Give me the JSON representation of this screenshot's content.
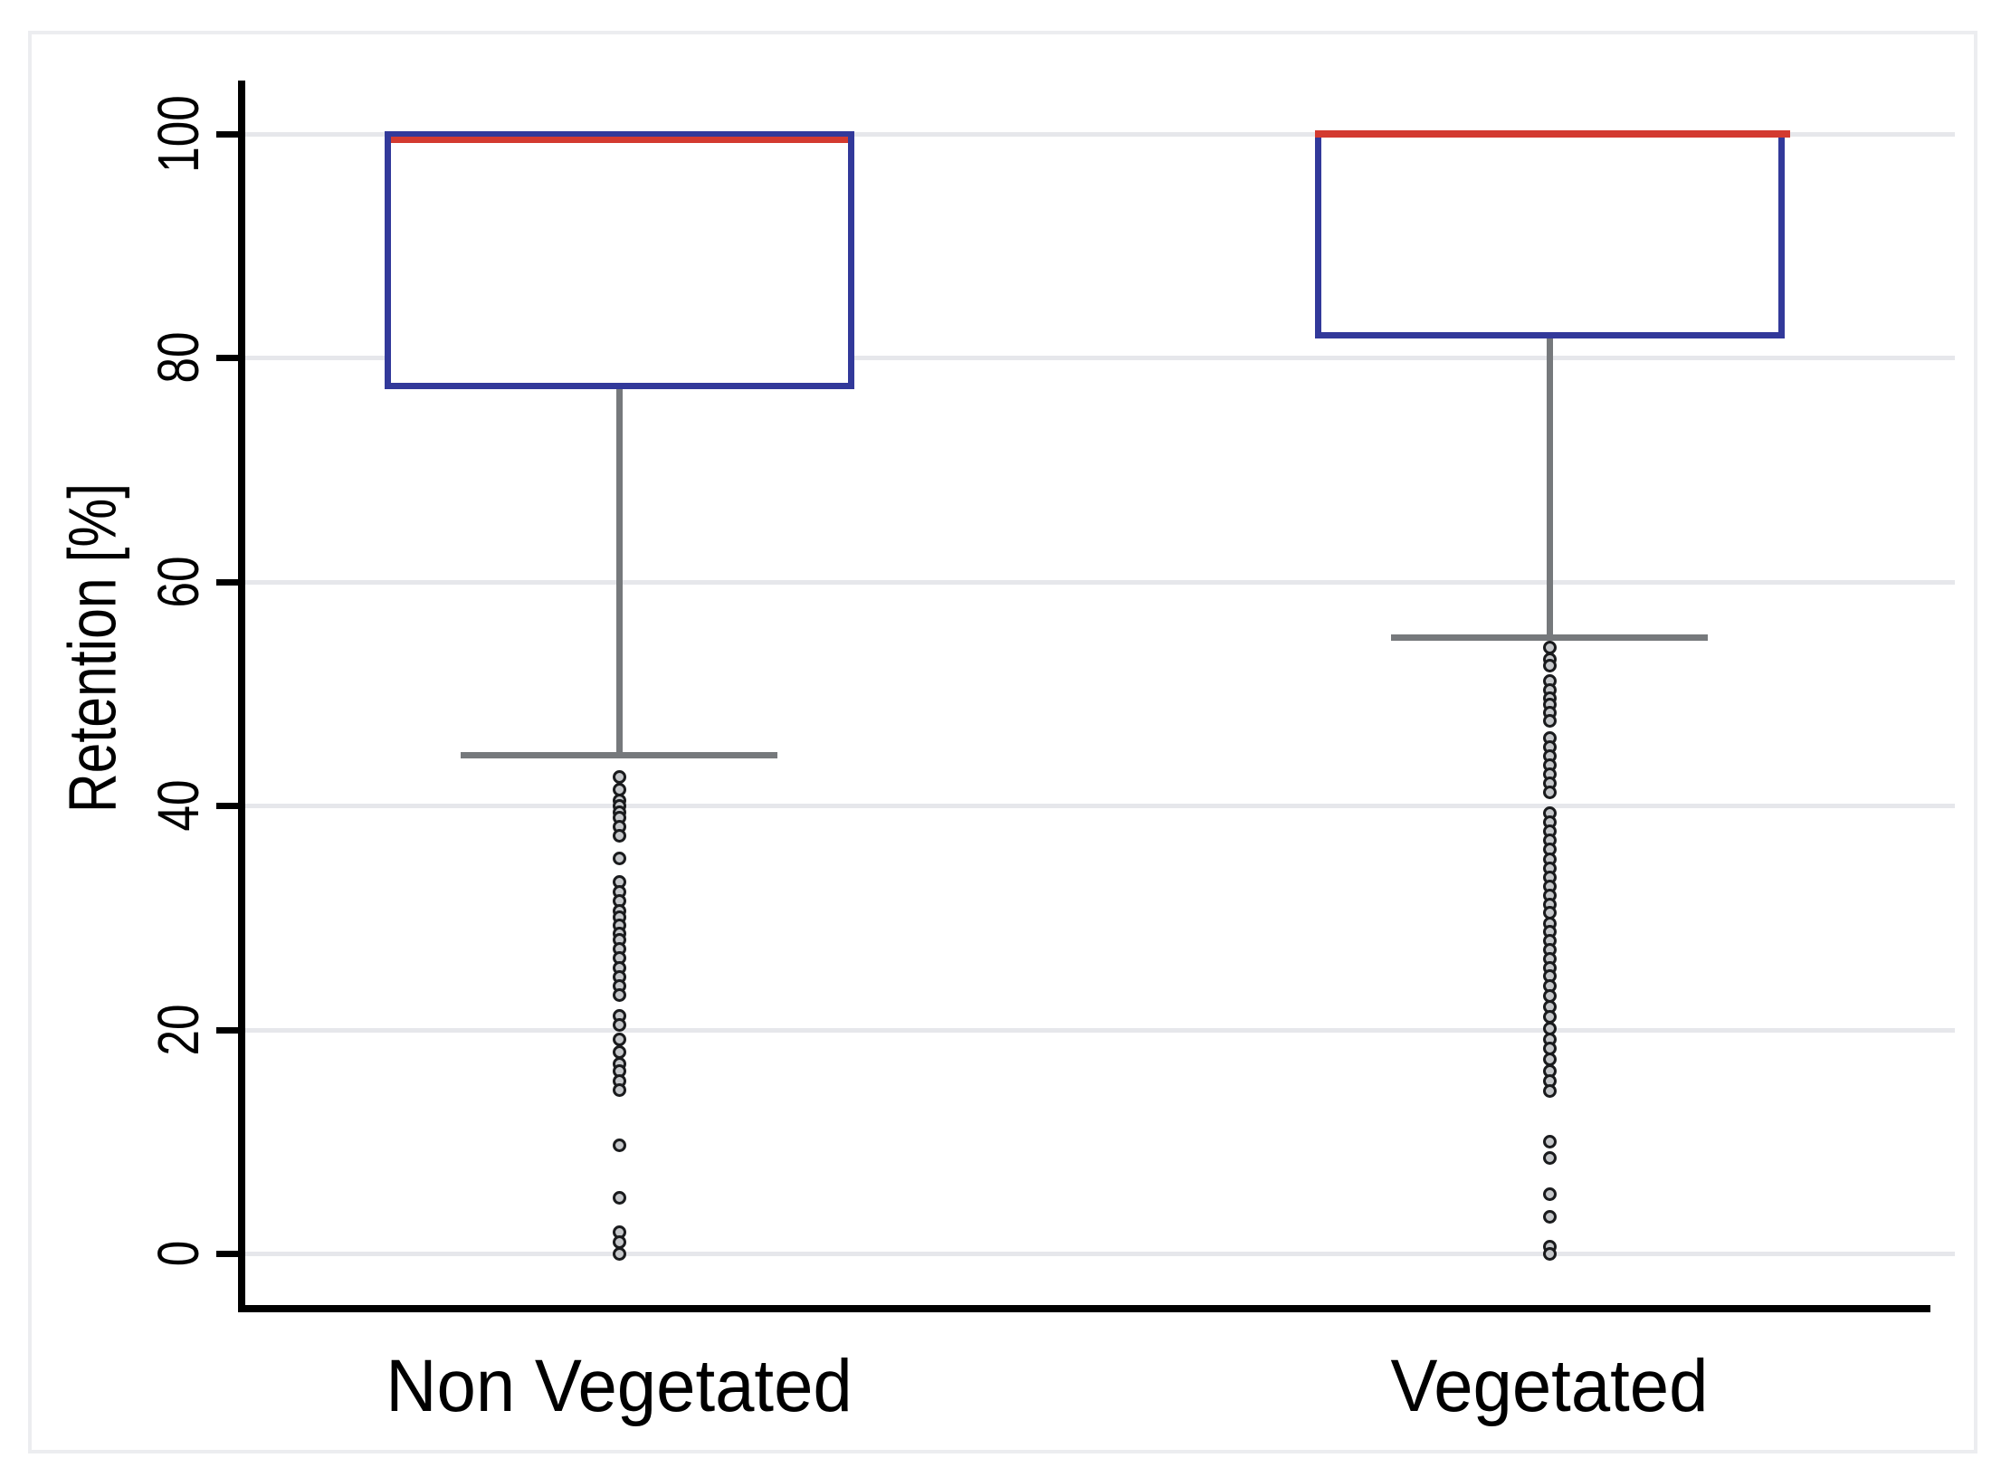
{
  "figure": {
    "background": "#FFFFFF",
    "frame_color": "#ECEDF0"
  },
  "chart_data": {
    "type": "boxplot",
    "title": "",
    "xlabel": "",
    "ylabel": "Retention [%]",
    "ylim": [
      0,
      100
    ],
    "yticks": [
      0,
      20,
      40,
      60,
      80,
      100
    ],
    "grid": true,
    "legend": false,
    "categories": [
      "Non Vegetated",
      "Vegetated"
    ],
    "series": [
      {
        "category": "Non Vegetated",
        "q1": 77.5,
        "median": 99.5,
        "q3": 100,
        "whisker_low": 44.5,
        "whisker_high": 100,
        "outliers": [
          42.6,
          41.4,
          40.5,
          40.0,
          39.4,
          38.9,
          38.1,
          37.3,
          35.3,
          33.2,
          32.3,
          31.5,
          30.6,
          30.0,
          29.3,
          28.6,
          28.0,
          27.2,
          26.4,
          25.5,
          24.7,
          23.9,
          23.1,
          21.2,
          20.4,
          19.1,
          18.0,
          16.9,
          16.3,
          15.4,
          14.6,
          9.7,
          5.0,
          1.9,
          1.0,
          0.0
        ]
      },
      {
        "category": "Vegetated",
        "q1": 82,
        "median": 100,
        "q3": 100,
        "whisker_low": 55,
        "whisker_high": 100,
        "outliers": [
          54.1,
          53.1,
          52.5,
          51.1,
          50.3,
          49.6,
          49.0,
          48.3,
          47.6,
          46.0,
          45.2,
          44.4,
          43.6,
          42.8,
          42.0,
          41.2,
          39.3,
          38.5,
          37.7,
          36.9,
          36.1,
          35.2,
          34.4,
          33.6,
          32.8,
          32.0,
          31.2,
          30.4,
          29.5,
          28.7,
          27.9,
          27.1,
          26.3,
          25.5,
          24.8,
          23.9,
          23.0,
          22.0,
          21.1,
          20.1,
          19.1,
          18.3,
          17.3,
          16.3,
          15.4,
          14.5,
          10.0,
          8.5,
          5.3,
          3.3,
          0.6,
          0.0
        ]
      }
    ],
    "colors": {
      "box_border": "#32399A",
      "median": "#D33A30",
      "whisker": "#76797C",
      "outlier_fill": "#C5C7CA",
      "outlier_stroke": "#1A1B1D",
      "gridline": "#E6E7EB",
      "axis": "#000000",
      "text": "#000000"
    }
  }
}
